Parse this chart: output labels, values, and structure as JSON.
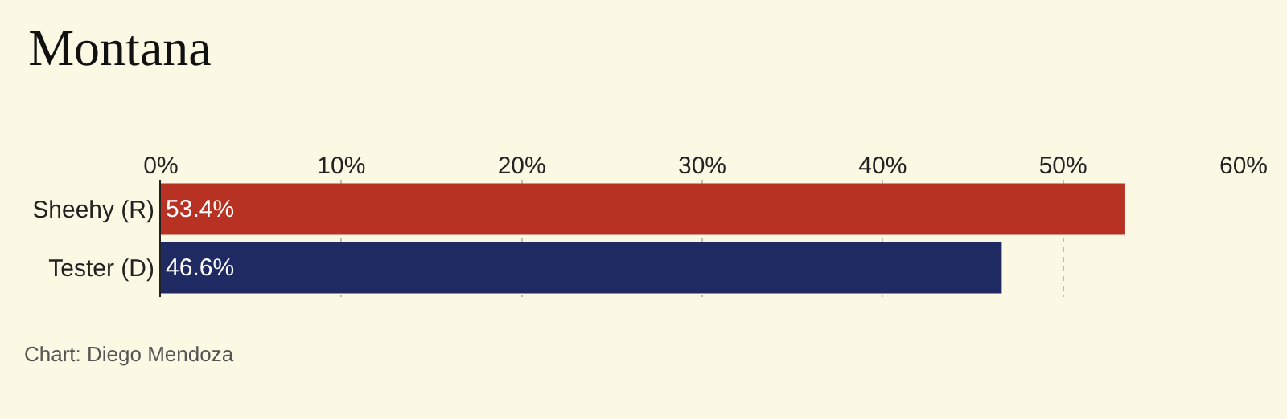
{
  "chart_data": {
    "type": "bar",
    "orientation": "horizontal",
    "title": "Montana",
    "categories": [
      "Sheehy (R)",
      "Tester (D)"
    ],
    "values": [
      53.4,
      46.6
    ],
    "colors": [
      "#b83224",
      "#1f2a63"
    ],
    "value_labels": [
      "53.4%",
      "46.6%"
    ],
    "xlim": [
      0,
      60
    ],
    "xticks": [
      {
        "value": 0,
        "label": "0%"
      },
      {
        "value": 10,
        "label": "10%"
      },
      {
        "value": 20,
        "label": "20%"
      },
      {
        "value": 30,
        "label": "30%"
      },
      {
        "value": 40,
        "label": "40%"
      },
      {
        "value": 50,
        "label": "50%"
      },
      {
        "value": 60,
        "label": "60%"
      }
    ],
    "grid": "x",
    "legend": false,
    "annotations": [
      "Chart: Diego Mendoza"
    ]
  }
}
